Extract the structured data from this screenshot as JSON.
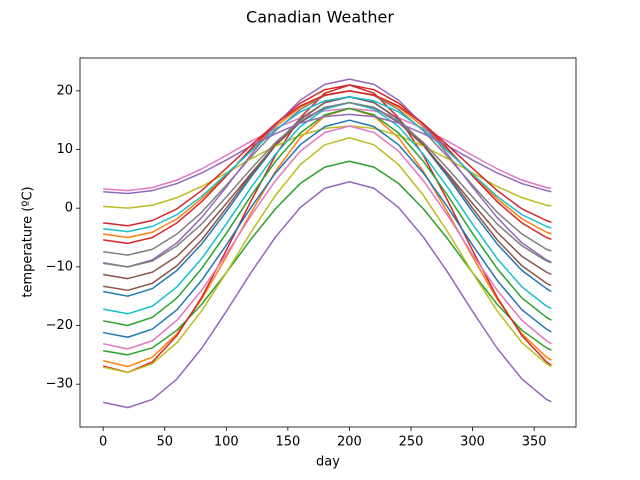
{
  "chart_data": {
    "type": "line",
    "title": "Canadian Weather",
    "xlabel": "day",
    "ylabel": "temperature (ºC)",
    "x": [
      0,
      20,
      40,
      60,
      80,
      100,
      120,
      140,
      160,
      180,
      200,
      220,
      240,
      260,
      280,
      300,
      320,
      340,
      360,
      364
    ],
    "xlim": [
      -18.8,
      384
    ],
    "ylim": [
      -37.3,
      25.6
    ],
    "xticks": [
      0,
      50,
      100,
      150,
      200,
      250,
      300,
      350
    ],
    "yticks": [
      {
        "value": -30,
        "label": "−30"
      },
      {
        "value": -20,
        "label": "−20"
      },
      {
        "value": -10,
        "label": "−10"
      },
      0,
      10,
      20
    ],
    "series": [
      {
        "color": "#1f77b4",
        "values": [
          -14.2,
          -15.0,
          -13.7,
          -10.6,
          -6.1,
          -0.6,
          5.3,
          10.7,
          15.1,
          18.0,
          19.0,
          18.0,
          15.1,
          10.7,
          5.3,
          -0.6,
          -6.1,
          -10.6,
          -13.7,
          -14.2
        ]
      },
      {
        "color": "#ff7f0e",
        "values": [
          -26.0,
          -27.0,
          -25.4,
          -21.4,
          -15.5,
          -8.3,
          -0.8,
          6.3,
          12.0,
          15.7,
          17.0,
          15.7,
          12.0,
          6.3,
          -0.8,
          -8.3,
          -15.5,
          -21.4,
          -25.4,
          -25.9
        ]
      },
      {
        "color": "#2ca02c",
        "values": [
          -24.3,
          -25.0,
          -23.8,
          -20.8,
          -16.4,
          -11.0,
          -5.3,
          -0.1,
          4.2,
          7.0,
          8.0,
          7.0,
          4.2,
          -0.1,
          -5.3,
          -11.0,
          -16.4,
          -20.8,
          -23.8,
          -24.2
        ]
      },
      {
        "color": "#d62728",
        "values": [
          -26.9,
          -28.0,
          -26.2,
          -21.7,
          -15.2,
          -7.2,
          1.2,
          9.0,
          15.4,
          19.6,
          21.0,
          19.6,
          15.4,
          9.0,
          1.2,
          -7.2,
          -15.2,
          -21.7,
          -26.2,
          -26.8
        ]
      },
      {
        "color": "#9467bd",
        "values": [
          -33.1,
          -34.0,
          -32.6,
          -29.1,
          -23.9,
          -17.6,
          -11.0,
          -4.9,
          0.1,
          3.4,
          4.5,
          3.4,
          0.1,
          -4.9,
          -11.0,
          -17.6,
          -23.9,
          -29.1,
          -32.6,
          -33.0
        ]
      },
      {
        "color": "#8c564b",
        "values": [
          -11.3,
          -12.0,
          -10.9,
          -8.2,
          -4.1,
          0.8,
          5.9,
          10.7,
          14.6,
          17.1,
          18.0,
          17.1,
          14.6,
          10.7,
          5.9,
          0.8,
          -4.1,
          -8.2,
          -10.9,
          -11.3
        ]
      },
      {
        "color": "#e377c2",
        "values": [
          3.3,
          3.0,
          3.5,
          4.8,
          6.7,
          9.0,
          11.4,
          13.6,
          15.4,
          16.6,
          17.0,
          16.6,
          15.4,
          13.6,
          11.4,
          9.0,
          6.7,
          4.8,
          3.5,
          3.4
        ]
      },
      {
        "color": "#7f7f7f",
        "values": [
          -7.4,
          -8.0,
          -7.0,
          -4.4,
          -0.7,
          3.9,
          8.7,
          13.2,
          16.8,
          19.2,
          20.0,
          19.2,
          16.8,
          13.2,
          8.7,
          3.9,
          -0.7,
          -4.4,
          -7.0,
          -7.3
        ]
      },
      {
        "color": "#bcbd22",
        "values": [
          0.3,
          0.0,
          0.5,
          1.8,
          3.7,
          6.0,
          8.4,
          10.6,
          12.4,
          13.6,
          14.0,
          13.6,
          12.4,
          10.6,
          8.4,
          6.0,
          3.7,
          1.8,
          0.5,
          0.4
        ]
      },
      {
        "color": "#17becf",
        "values": [
          -17.2,
          -18.0,
          -16.7,
          -13.4,
          -8.6,
          -2.7,
          3.5,
          9.2,
          13.9,
          16.9,
          18.0,
          16.9,
          13.9,
          9.2,
          3.5,
          -2.7,
          -8.6,
          -13.4,
          -16.7,
          -17.1
        ]
      },
      {
        "color": "#1f77b4",
        "values": [
          -21.2,
          -22.0,
          -20.6,
          -17.3,
          -12.3,
          -6.3,
          0.1,
          6.0,
          10.8,
          13.9,
          15.0,
          13.9,
          10.8,
          6.0,
          0.1,
          -6.3,
          -12.3,
          -17.3,
          -20.6,
          -21.1
        ]
      },
      {
        "color": "#ff7f0e",
        "values": [
          -4.4,
          -5.0,
          -4.1,
          -1.8,
          1.6,
          5.6,
          9.9,
          13.9,
          17.2,
          19.3,
          20.0,
          19.3,
          17.2,
          13.9,
          9.9,
          5.6,
          1.6,
          -1.8,
          -4.1,
          -4.4
        ]
      },
      {
        "color": "#2ca02c",
        "values": [
          -19.2,
          -20.0,
          -18.6,
          -15.3,
          -10.3,
          -4.3,
          2.1,
          8.0,
          12.8,
          15.9,
          17.0,
          15.9,
          12.8,
          8.0,
          2.1,
          -4.3,
          -10.3,
          -15.3,
          -18.6,
          -19.1
        ]
      },
      {
        "color": "#d62728",
        "values": [
          -5.4,
          -6.0,
          -5.0,
          -2.5,
          1.1,
          5.5,
          10.1,
          14.4,
          17.9,
          20.2,
          21.0,
          20.2,
          17.9,
          14.4,
          10.1,
          5.5,
          1.1,
          -2.5,
          -5.0,
          -5.3
        ]
      },
      {
        "color": "#9467bd",
        "values": [
          -9.3,
          -10.0,
          -8.8,
          -5.9,
          -1.6,
          3.6,
          9.1,
          14.2,
          18.4,
          21.1,
          22.0,
          21.1,
          18.4,
          14.2,
          9.1,
          3.6,
          -1.6,
          -5.9,
          -8.8,
          -9.2
        ]
      },
      {
        "color": "#8c564b",
        "values": [
          -13.3,
          -14.0,
          -12.8,
          -9.8,
          -5.4,
          0.0,
          5.7,
          10.9,
          15.2,
          18.0,
          19.0,
          18.0,
          15.2,
          10.9,
          5.7,
          0.0,
          -5.4,
          -9.8,
          -12.8,
          -13.2
        ]
      },
      {
        "color": "#e377c2",
        "values": [
          -23.1,
          -24.0,
          -22.6,
          -19.1,
          -14.0,
          -7.9,
          -1.3,
          4.7,
          9.7,
          12.9,
          14.0,
          12.9,
          9.7,
          4.7,
          -1.3,
          -7.9,
          -14.0,
          -19.1,
          -22.6,
          -23.1
        ]
      },
      {
        "color": "#7f7f7f",
        "values": [
          -9.4,
          -10.0,
          -9.0,
          -6.4,
          -2.7,
          1.9,
          6.7,
          11.2,
          14.8,
          17.2,
          18.0,
          17.2,
          14.8,
          11.2,
          6.7,
          1.9,
          -2.7,
          -6.4,
          -9.0,
          -9.3
        ]
      },
      {
        "color": "#bcbd22",
        "values": [
          -27.1,
          -28.0,
          -26.5,
          -22.9,
          -17.5,
          -11.0,
          -4.1,
          2.2,
          7.4,
          10.8,
          12.0,
          10.8,
          7.4,
          2.2,
          -4.1,
          -11.0,
          -17.5,
          -22.9,
          -26.5,
          -27.0
        ]
      },
      {
        "color": "#17becf",
        "values": [
          -3.5,
          -4.0,
          -3.1,
          -1.1,
          2.0,
          5.8,
          9.7,
          13.4,
          16.4,
          18.3,
          19.0,
          18.3,
          16.4,
          13.4,
          9.7,
          5.8,
          2.0,
          -1.1,
          -3.1,
          -3.4
        ]
      },
      {
        "color": "#9467bd",
        "values": [
          2.8,
          2.5,
          3.0,
          4.2,
          6.0,
          8.2,
          10.6,
          12.7,
          14.5,
          15.6,
          16.0,
          15.6,
          14.5,
          12.7,
          10.6,
          8.2,
          6.0,
          4.2,
          3.0,
          2.8
        ]
      },
      {
        "color": "#d62728",
        "values": [
          -2.5,
          -3.0,
          -2.1,
          -0.1,
          3.0,
          6.8,
          10.7,
          14.4,
          17.4,
          19.3,
          20.0,
          19.3,
          17.4,
          14.4,
          10.7,
          6.8,
          3.0,
          -0.1,
          -2.1,
          -2.4
        ]
      }
    ]
  }
}
